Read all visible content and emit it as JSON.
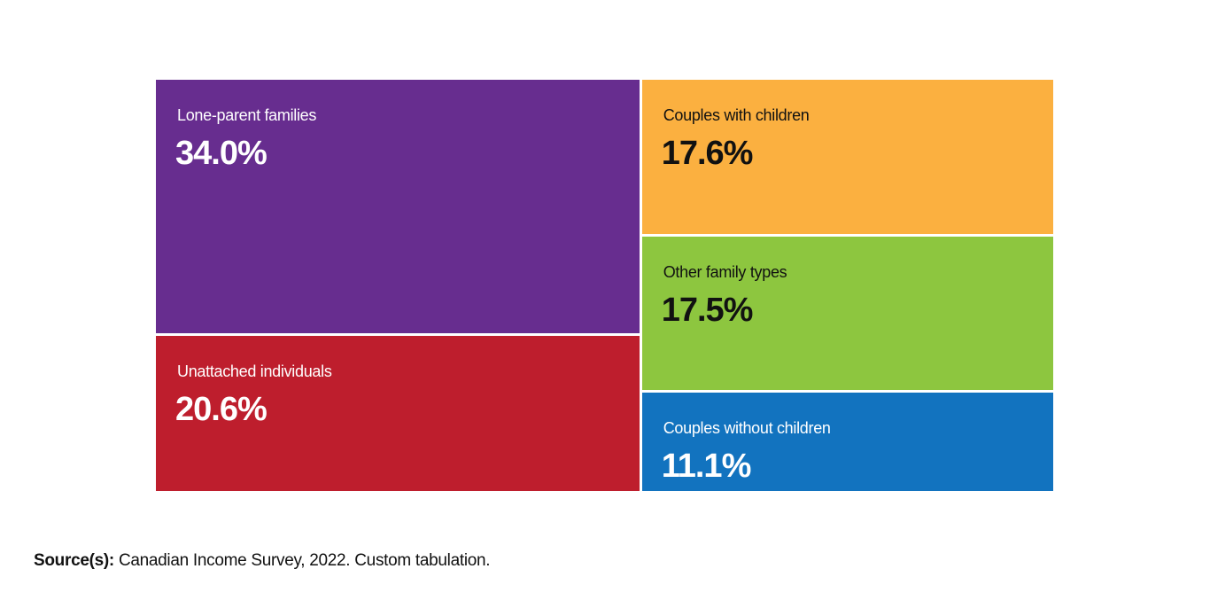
{
  "chart_data": {
    "type": "treemap",
    "unit": "%",
    "items": [
      {
        "label": "Lone-parent families",
        "value": 34.0,
        "display": "34.0%",
        "color": "#672d8f",
        "text_color": "#ffffff"
      },
      {
        "label": "Unattached individuals",
        "value": 20.6,
        "display": "20.6%",
        "color": "#be1e2d",
        "text_color": "#ffffff"
      },
      {
        "label": "Couples with children",
        "value": 17.6,
        "display": "17.6%",
        "color": "#fbb040",
        "text_color": "#111111"
      },
      {
        "label": "Other family types",
        "value": 17.5,
        "display": "17.5%",
        "color": "#8dc63f",
        "text_color": "#111111"
      },
      {
        "label": "Couples without children",
        "value": 11.1,
        "display": "11.1%",
        "color": "#1273bf",
        "text_color": "#ffffff"
      }
    ]
  },
  "source": {
    "label": "Source(s):",
    "text": " Canadian Income Survey, 2022. Custom tabulation."
  }
}
